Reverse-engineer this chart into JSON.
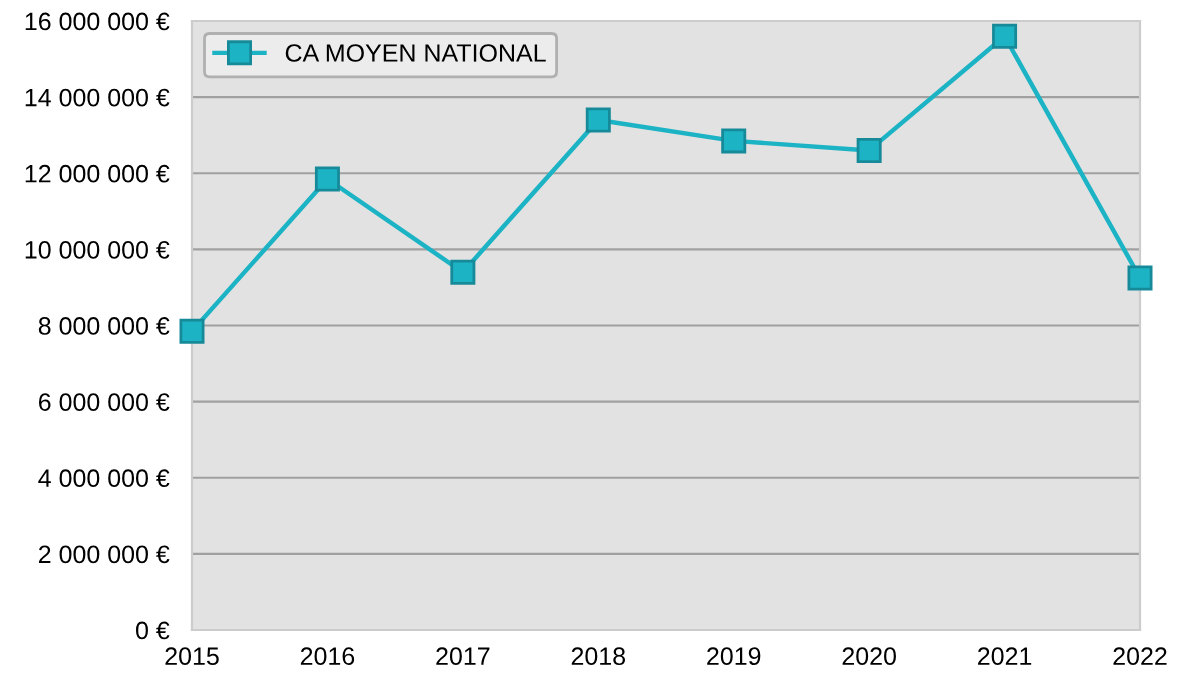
{
  "chart_data": {
    "type": "line",
    "categories": [
      "2015",
      "2016",
      "2017",
      "2018",
      "2019",
      "2020",
      "2021",
      "2022"
    ],
    "series": [
      {
        "name": "CA MOYEN NATIONAL",
        "color": "#1cb3c5",
        "values": [
          7850000,
          11850000,
          9400000,
          13400000,
          12850000,
          12600000,
          15600000,
          9250000
        ]
      }
    ],
    "ylim": [
      0,
      16000000
    ],
    "yticks": [
      {
        "value": 0,
        "label": "0 €"
      },
      {
        "value": 2000000,
        "label": "2 000 000 €"
      },
      {
        "value": 4000000,
        "label": "4 000 000 €"
      },
      {
        "value": 6000000,
        "label": "6 000 000 €"
      },
      {
        "value": 8000000,
        "label": "8 000 000 €"
      },
      {
        "value": 10000000,
        "label": "10 000 000 €"
      },
      {
        "value": 12000000,
        "label": "12 000 000 €"
      },
      {
        "value": 14000000,
        "label": "14 000 000 €"
      },
      {
        "value": 16000000,
        "label": "16 000 000 €"
      }
    ],
    "grid": "y",
    "legend": "top left",
    "marker": "square",
    "line_style": "solid"
  }
}
